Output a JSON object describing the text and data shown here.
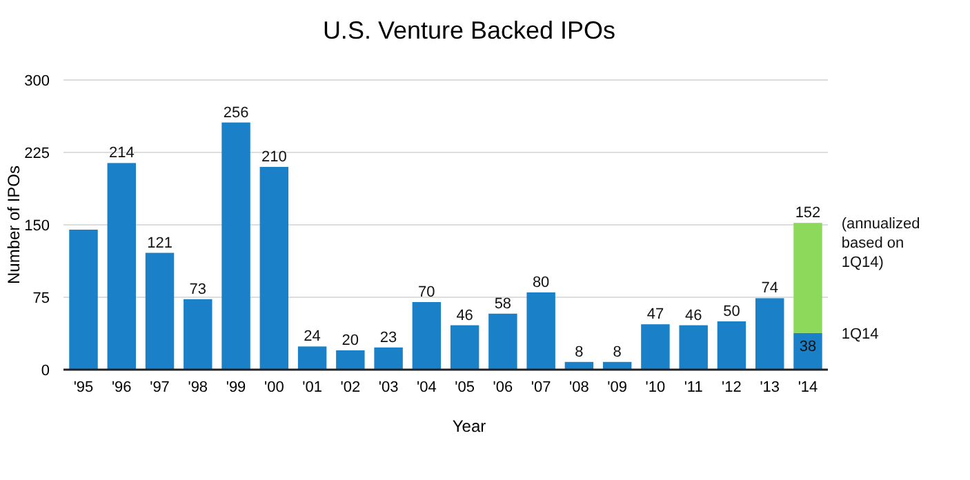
{
  "chart_data": {
    "type": "bar",
    "title": "U.S. Venture Backed IPOs",
    "xlabel": "Year",
    "ylabel": "Number of IPOs",
    "categories": [
      "'95",
      "'96",
      "'97",
      "'98",
      "'99",
      "'00",
      "'01",
      "'02",
      "'03",
      "'04",
      "'05",
      "'06",
      "'07",
      "'08",
      "'09",
      "'10",
      "'11",
      "'12",
      "'13",
      "'14"
    ],
    "stacked": true,
    "series": [
      {
        "color": "#1a80c8",
        "values": [
          145,
          214,
          121,
          73,
          256,
          210,
          24,
          20,
          23,
          70,
          46,
          58,
          80,
          8,
          8,
          47,
          46,
          50,
          74,
          38
        ],
        "value_labels": [
          null,
          "214",
          "121",
          "73",
          "256",
          "210",
          "24",
          "20",
          "23",
          "70",
          "46",
          "58",
          "80",
          "8",
          "8",
          "47",
          "46",
          "50",
          "74",
          "38"
        ]
      },
      {
        "color": "#8dd95b",
        "values": [
          null,
          null,
          null,
          null,
          null,
          null,
          null,
          null,
          null,
          null,
          null,
          null,
          null,
          null,
          null,
          null,
          null,
          null,
          null,
          114
        ]
      }
    ],
    "totals": [
      null,
      null,
      null,
      null,
      null,
      null,
      null,
      null,
      null,
      null,
      null,
      null,
      null,
      null,
      null,
      null,
      null,
      null,
      null,
      "152"
    ],
    "ylim": [
      0,
      300
    ],
    "yticks": [
      0,
      75,
      150,
      225,
      300
    ],
    "grid": "y",
    "annotations": [
      {
        "text": "(annualized based on 1Q14)",
        "x": "'14",
        "y": 152
      },
      {
        "text": "1Q14",
        "x": "'14",
        "y": 38
      }
    ]
  }
}
